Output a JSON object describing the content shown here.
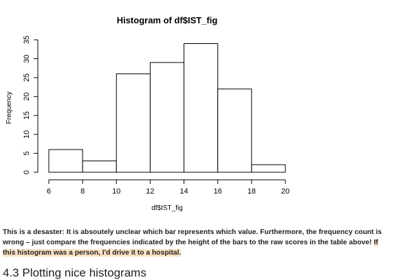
{
  "chart_data": {
    "type": "bar",
    "title": "Histogram of df$IST_fig",
    "xlabel": "df$IST_fig",
    "ylabel": "Frequency",
    "bins": [
      {
        "from": 6,
        "to": 8,
        "value": 6
      },
      {
        "from": 8,
        "to": 10,
        "value": 3
      },
      {
        "from": 10,
        "to": 12,
        "value": 26
      },
      {
        "from": 12,
        "to": 14,
        "value": 29
      },
      {
        "from": 14,
        "to": 16,
        "value": 34
      },
      {
        "from": 16,
        "to": 18,
        "value": 22
      },
      {
        "from": 18,
        "to": 20,
        "value": 2
      }
    ],
    "xlim": [
      6,
      20
    ],
    "ylim": [
      0,
      35
    ],
    "x_ticks": [
      "6",
      "8",
      "10",
      "12",
      "14",
      "16",
      "18",
      "20"
    ],
    "y_ticks": [
      "0",
      "5",
      "10",
      "15",
      "20",
      "25",
      "30",
      "35"
    ],
    "grid": false
  },
  "text": {
    "paragraph_plain": "This is a desaster: It is absoutely unclear which bar represents which value. Furthermore, the frequency count is wrong – just compare the frequencies indicated by the height of the bars to the raw scores in the table above! ",
    "paragraph_highlight": "If this histogram was a person, I'd drive it to a hospital.",
    "section_heading": "4.3 Plotting nice histograms"
  }
}
